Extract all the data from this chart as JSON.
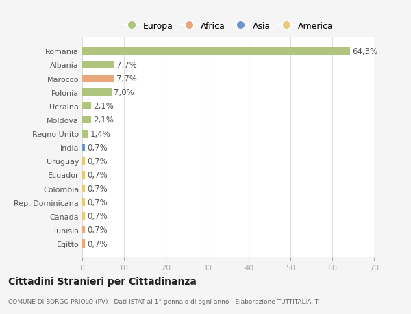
{
  "countries": [
    "Romania",
    "Albania",
    "Marocco",
    "Polonia",
    "Ucraina",
    "Moldova",
    "Regno Unito",
    "India",
    "Uruguay",
    "Ecuador",
    "Colombia",
    "Rep. Dominicana",
    "Canada",
    "Tunisia",
    "Egitto"
  ],
  "values": [
    64.3,
    7.7,
    7.7,
    7.0,
    2.1,
    2.1,
    1.4,
    0.7,
    0.7,
    0.7,
    0.7,
    0.7,
    0.7,
    0.7,
    0.7
  ],
  "labels": [
    "64,3%",
    "7,7%",
    "7,7%",
    "7,0%",
    "2,1%",
    "2,1%",
    "1,4%",
    "0,7%",
    "0,7%",
    "0,7%",
    "0,7%",
    "0,7%",
    "0,7%",
    "0,7%",
    "0,7%"
  ],
  "colors": [
    "#afc47d",
    "#afc47d",
    "#e8a87c",
    "#afc47d",
    "#afc47d",
    "#afc47d",
    "#afc47d",
    "#7094c8",
    "#e8c97c",
    "#e8c97c",
    "#e8c97c",
    "#e8c97c",
    "#e8c97c",
    "#e8a87c",
    "#e8a87c"
  ],
  "legend_labels": [
    "Europa",
    "Africa",
    "Asia",
    "America"
  ],
  "legend_colors": [
    "#afc47d",
    "#e8a87c",
    "#7094c8",
    "#e8c97c"
  ],
  "xlim": [
    0,
    70
  ],
  "xticks": [
    0,
    10,
    20,
    30,
    40,
    50,
    60,
    70
  ],
  "title": "Cittadini Stranieri per Cittadinanza",
  "subtitle": "COMUNE DI BORGO PRIOLO (PV) - Dati ISTAT al 1° gennaio di ogni anno - Elaborazione TUTTITALIA.IT",
  "bg_color": "#f5f5f5",
  "bar_bg_color": "#ffffff",
  "grid_color": "#dddddd",
  "label_fontsize": 8.5,
  "tick_fontsize": 8.0,
  "legend_fontsize": 9.0
}
